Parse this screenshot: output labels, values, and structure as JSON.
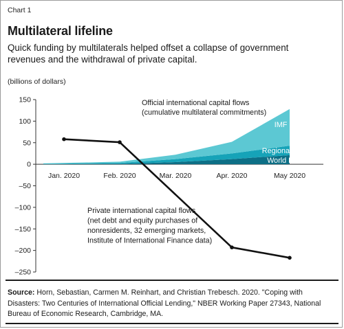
{
  "header": {
    "chart_number": "Chart 1",
    "title": "Multilateral lifeline",
    "subtitle": "Quick funding by multilaterals helped offset a collapse of government revenues and the withdrawal of private capital.",
    "unit": "(billions of dollars)"
  },
  "colors": {
    "world_bank": "#0d6f86",
    "regional_banks": "#16a3b8",
    "imf": "#5cc8d3",
    "private_line": "#111111"
  },
  "chart_data": {
    "type": "area",
    "categories": [
      "Jan. 2020",
      "Feb. 2020",
      "Mar. 2020",
      "Apr. 2020",
      "May 2020"
    ],
    "ylim": [
      -250,
      150
    ],
    "yticks": [
      150,
      100,
      50,
      0,
      -50,
      -100,
      -150,
      -200,
      -250
    ],
    "ytick_labels": [
      "150",
      "100",
      "50",
      "0",
      "–50",
      "–100",
      "–150",
      "–200",
      "–250"
    ],
    "stacked_area": {
      "annotation": [
        "Official international capital flows",
        "(cumulative multilateral commitments)"
      ],
      "series": [
        {
          "name": "World Bank",
          "values": [
            0,
            1,
            5,
            12,
            21
          ]
        },
        {
          "name": "Regional banks",
          "values": [
            1,
            2,
            7,
            13,
            22
          ]
        },
        {
          "name": "IMF",
          "values": [
            1,
            3,
            10,
            27,
            85
          ]
        }
      ]
    },
    "line": {
      "annotation": [
        "Private international capital flows",
        "(net debt and equity purchases of",
        "nonresidents, 32 emerging markets,",
        "Institute of International Finance data)"
      ],
      "x": [
        "Jan. 2020",
        "Feb. 2020",
        "Apr. 2020",
        "May 2020"
      ],
      "values": [
        58,
        51,
        -193,
        -217
      ]
    },
    "legend": "inline labels",
    "grid": false
  },
  "source": {
    "label": "Source:",
    "text": " Horn, Sebastian, Carmen M. Reinhart, and Christian Trebesch. 2020. \"Coping with Disasters: Two Centuries of International Official Lending,\" NBER Working Paper 27343, National Bureau of Economic Research, Cambridge, MA."
  }
}
